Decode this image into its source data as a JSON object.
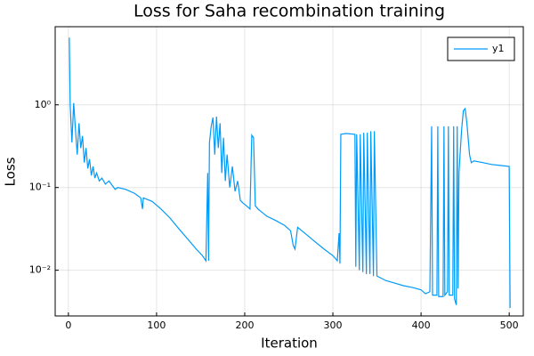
{
  "chart_data": {
    "type": "line",
    "title": "Loss for Saha recombination training",
    "x_label": "Iteration",
    "y_label": "Loss",
    "log_y": true,
    "grid": true,
    "legend": "top-right",
    "xlim": [
      -15,
      516
    ],
    "ylim": [
      0.0028,
      8.8
    ],
    "xticks": [
      0,
      100,
      200,
      300,
      400,
      500
    ],
    "yticks": [
      {
        "value": 0.01,
        "label": "10⁻²"
      },
      {
        "value": 0.1,
        "label": "10⁻¹"
      },
      {
        "value": 1,
        "label": "10⁰"
      }
    ],
    "series": [
      {
        "name": "y1",
        "color": "#009af9",
        "x": [
          1,
          2,
          4,
          6,
          8,
          10,
          12,
          14,
          16,
          18,
          20,
          22,
          24,
          26,
          28,
          30,
          32,
          35,
          38,
          42,
          46,
          50,
          53,
          56,
          65,
          75,
          82,
          84,
          85,
          95,
          105,
          115,
          125,
          135,
          145,
          152,
          156,
          158,
          159,
          160,
          162,
          164,
          166,
          168,
          170,
          172,
          174,
          176,
          178,
          180,
          183,
          186,
          189,
          192,
          195,
          198,
          202,
          206,
          208,
          210,
          212,
          215,
          225,
          235,
          245,
          252,
          255,
          257,
          260,
          270,
          280,
          290,
          300,
          305,
          307,
          308,
          309,
          315,
          325,
          326,
          327,
          330,
          331,
          334,
          335,
          338,
          339,
          342,
          343,
          346,
          347,
          350,
          360,
          370,
          380,
          390,
          400,
          405,
          410,
          412,
          413,
          418,
          419,
          420,
          425,
          426,
          427,
          430,
          431,
          432,
          436,
          437,
          438,
          440,
          441,
          442,
          443,
          446,
          448,
          450,
          452,
          455,
          457,
          460,
          470,
          480,
          490,
          500,
          501
        ],
        "values": [
          6.5,
          1.0,
          0.35,
          1.05,
          0.5,
          0.25,
          0.6,
          0.3,
          0.42,
          0.2,
          0.3,
          0.17,
          0.22,
          0.14,
          0.18,
          0.13,
          0.15,
          0.12,
          0.13,
          0.11,
          0.12,
          0.105,
          0.095,
          0.1,
          0.095,
          0.085,
          0.075,
          0.055,
          0.075,
          0.068,
          0.055,
          0.043,
          0.032,
          0.024,
          0.018,
          0.015,
          0.013,
          0.15,
          0.013,
          0.35,
          0.55,
          0.7,
          0.25,
          0.72,
          0.3,
          0.6,
          0.15,
          0.4,
          0.12,
          0.25,
          0.1,
          0.18,
          0.09,
          0.12,
          0.07,
          0.065,
          0.06,
          0.055,
          0.43,
          0.4,
          0.06,
          0.055,
          0.045,
          0.04,
          0.035,
          0.03,
          0.02,
          0.018,
          0.033,
          0.027,
          0.022,
          0.018,
          0.015,
          0.013,
          0.028,
          0.012,
          0.44,
          0.45,
          0.44,
          0.011,
          0.44,
          0.01,
          0.44,
          0.0095,
          0.46,
          0.009,
          0.46,
          0.009,
          0.48,
          0.0085,
          0.48,
          0.0085,
          0.0075,
          0.007,
          0.0065,
          0.0062,
          0.0058,
          0.0052,
          0.0055,
          0.55,
          0.005,
          0.005,
          0.55,
          0.0048,
          0.0048,
          0.55,
          0.005,
          0.0055,
          0.55,
          0.005,
          0.005,
          0.55,
          0.0045,
          0.0038,
          0.55,
          0.006,
          0.15,
          0.5,
          0.85,
          0.9,
          0.6,
          0.25,
          0.2,
          0.21,
          0.2,
          0.19,
          0.185,
          0.18,
          0.0035
        ]
      }
    ]
  }
}
